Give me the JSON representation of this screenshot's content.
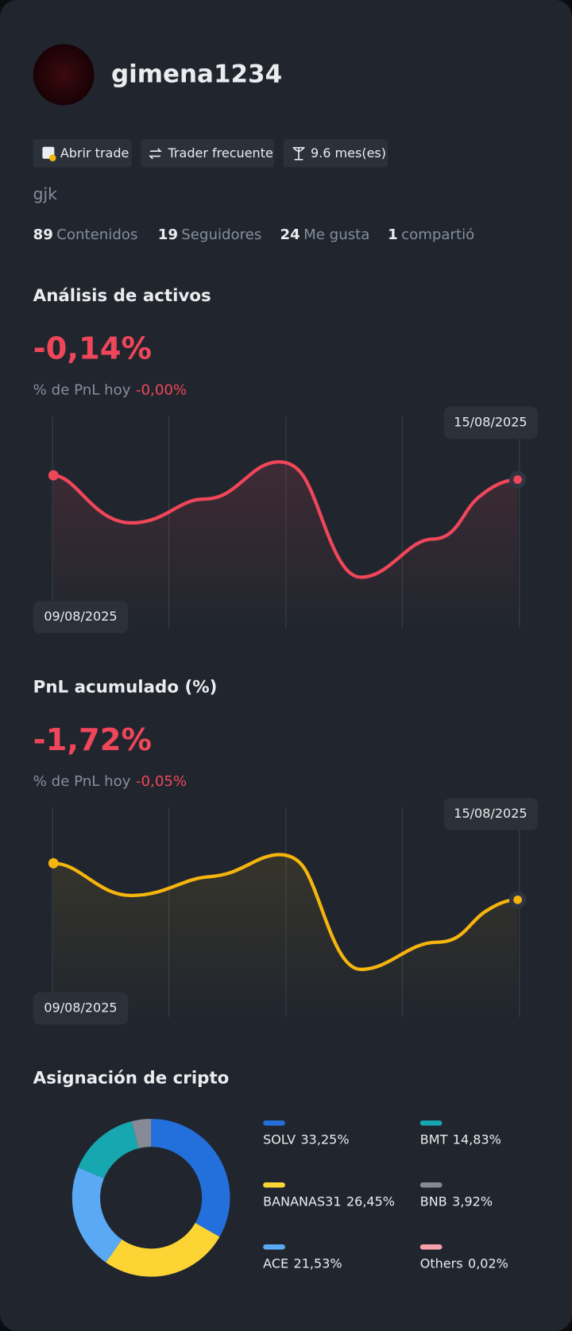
{
  "profile": {
    "username": "gimena1234",
    "badges": [
      "Abrir trade",
      "Trader frecuente",
      "9.6 mes(es)"
    ],
    "bio": "gjk",
    "stats": [
      {
        "value": 89,
        "label": "Contenidos"
      },
      {
        "value": 19,
        "label": "Seguidores"
      },
      {
        "value": 24,
        "label": "Me gusta"
      },
      {
        "value": 1,
        "label": "compartió"
      }
    ]
  },
  "asset_analysis": {
    "title": "Análisis de activos",
    "value": "-0,14%",
    "today_label": "% de PnL hoy",
    "today_value": "-0,00%",
    "start_date": "09/08/2025",
    "end_date": "15/08/2025"
  },
  "pnl_cumulative": {
    "title": "PnL acumulado (%)",
    "value": "-1,72%",
    "today_label": "% de PnL hoy",
    "today_value": "-0,05%",
    "start_date": "09/08/2025",
    "end_date": "15/08/2025"
  },
  "allocation": {
    "title": "Asignación de cripto",
    "type": "pie",
    "categories": [
      "SOLV",
      "BANANAS31",
      "ACE",
      "BMT",
      "BNB",
      "Others"
    ],
    "values": [
      33.25,
      26.45,
      21.53,
      14.83,
      3.92,
      0.02
    ],
    "value_labels": [
      "33,25%",
      "26,45%",
      "21,53%",
      "14,83%",
      "3,92%",
      "0,02%"
    ],
    "colors": [
      "#2370dc",
      "#fcd535",
      "#5aa9f5",
      "#16a7b0",
      "#858a96",
      "#f6a0aa"
    ]
  }
}
